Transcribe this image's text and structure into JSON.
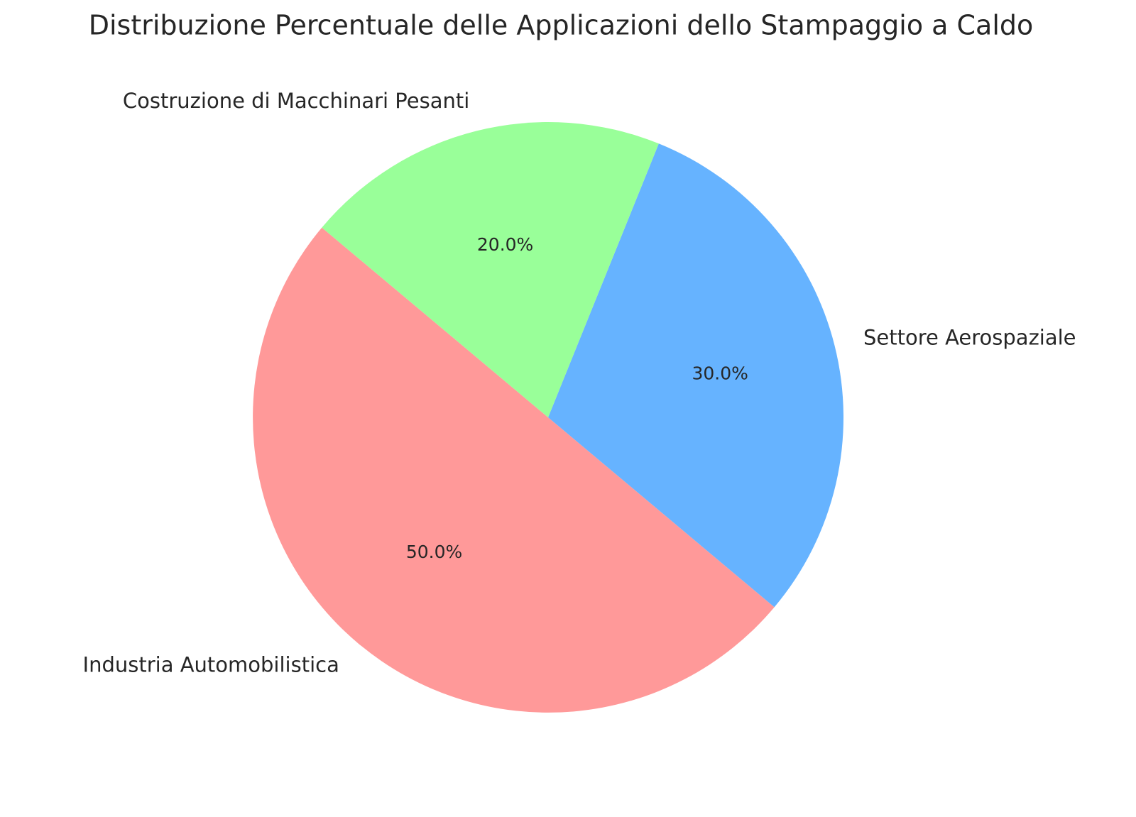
{
  "chart_data": {
    "type": "pie",
    "title": "Distribuzione Percentuale delle Applicazioni dello Stampaggio a Caldo",
    "categories": [
      "Industria Automobilistica",
      "Settore Aerospaziale",
      "Costruzione di Macchinari Pesanti"
    ],
    "values": [
      50,
      30,
      20
    ],
    "value_labels": [
      "50.0%",
      "30.0%",
      "20.0%"
    ],
    "colors": [
      "#ff9999",
      "#66b3ff",
      "#99ff99"
    ]
  }
}
